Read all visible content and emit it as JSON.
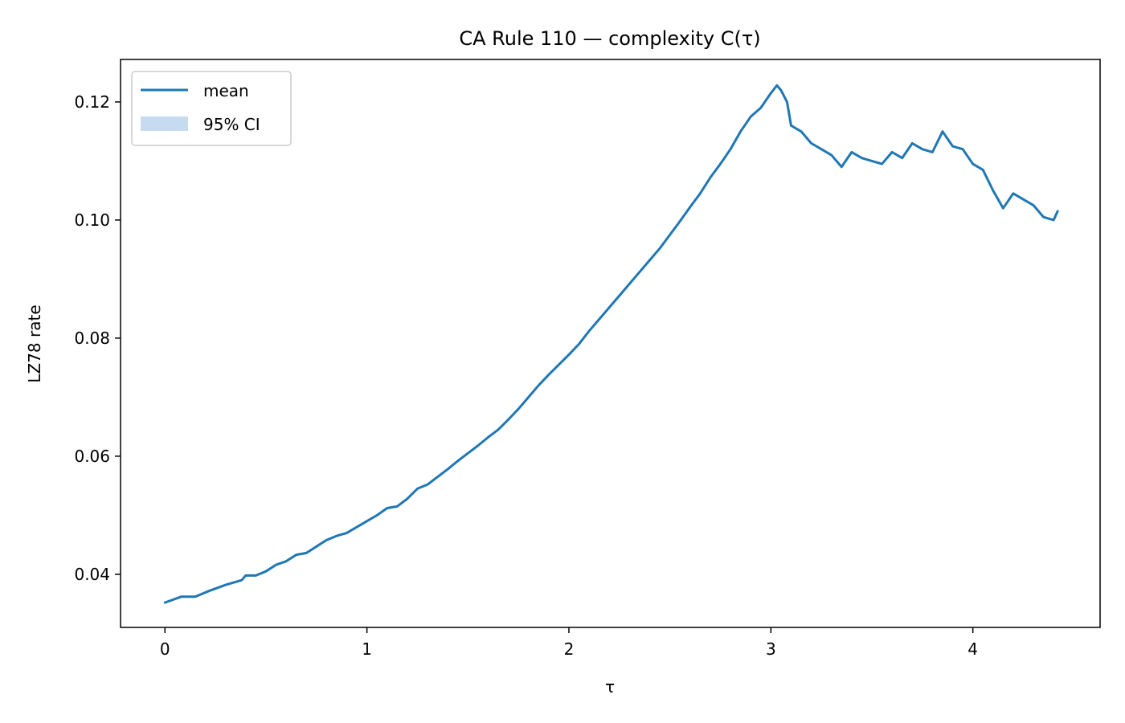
{
  "chart_data": {
    "type": "line",
    "title": "CA Rule 110 — complexity C(τ)",
    "xlabel": "τ",
    "ylabel": "LZ78 rate",
    "xlim": [
      -0.22,
      4.63
    ],
    "ylim": [
      0.031,
      0.1272
    ],
    "xticks": [
      0,
      1,
      2,
      3,
      4
    ],
    "xtick_labels": [
      "0",
      "1",
      "2",
      "3",
      "4"
    ],
    "yticks": [
      0.04,
      0.06,
      0.08,
      0.1,
      0.12
    ],
    "ytick_labels": [
      "0.04",
      "0.06",
      "0.08",
      "0.10",
      "0.12"
    ],
    "grid": false,
    "legend": {
      "position": "top-left",
      "entries": [
        "mean",
        "95% CI"
      ]
    },
    "colors": {
      "line": "#1f77b4",
      "band": "#c6dbef",
      "axes": "#000000"
    },
    "series": [
      {
        "name": "mean",
        "x": [
          0.0,
          0.08,
          0.15,
          0.22,
          0.3,
          0.38,
          0.4,
          0.45,
          0.5,
          0.55,
          0.6,
          0.65,
          0.7,
          0.75,
          0.8,
          0.85,
          0.9,
          0.95,
          1.0,
          1.05,
          1.1,
          1.15,
          1.2,
          1.25,
          1.3,
          1.35,
          1.4,
          1.45,
          1.5,
          1.55,
          1.6,
          1.65,
          1.7,
          1.75,
          1.8,
          1.85,
          1.9,
          1.95,
          2.0,
          2.05,
          2.1,
          2.15,
          2.2,
          2.25,
          2.3,
          2.35,
          2.4,
          2.45,
          2.5,
          2.55,
          2.6,
          2.65,
          2.7,
          2.75,
          2.8,
          2.85,
          2.9,
          2.95,
          3.0,
          3.03,
          3.05,
          3.08,
          3.1,
          3.15,
          3.2,
          3.25,
          3.3,
          3.35,
          3.4,
          3.45,
          3.5,
          3.55,
          3.6,
          3.65,
          3.7,
          3.75,
          3.8,
          3.85,
          3.9,
          3.95,
          4.0,
          4.05,
          4.1,
          4.15,
          4.2,
          4.25,
          4.3,
          4.35,
          4.4,
          4.42
        ],
        "y": [
          0.0352,
          0.0362,
          0.0362,
          0.0372,
          0.0382,
          0.039,
          0.0398,
          0.0398,
          0.0405,
          0.0416,
          0.0422,
          0.0433,
          0.0436,
          0.0447,
          0.0458,
          0.0465,
          0.047,
          0.048,
          0.049,
          0.05,
          0.0512,
          0.0515,
          0.0528,
          0.0545,
          0.0552,
          0.0565,
          0.0578,
          0.0592,
          0.0605,
          0.0618,
          0.0632,
          0.0645,
          0.0662,
          0.068,
          0.07,
          0.072,
          0.0738,
          0.0755,
          0.0772,
          0.079,
          0.0812,
          0.0832,
          0.0852,
          0.0872,
          0.0892,
          0.0912,
          0.0932,
          0.0952,
          0.0975,
          0.0998,
          0.1022,
          0.1045,
          0.1072,
          0.1095,
          0.112,
          0.115,
          0.1175,
          0.119,
          0.1215,
          0.1228,
          0.122,
          0.12,
          0.116,
          0.115,
          0.113,
          0.112,
          0.111,
          0.109,
          0.1115,
          0.1105,
          0.11,
          0.1095,
          0.1115,
          0.1105,
          0.113,
          0.112,
          0.1115,
          0.115,
          0.1125,
          0.112,
          0.1095,
          0.1085,
          0.105,
          0.102,
          0.1045,
          0.1035,
          0.1025,
          0.1005,
          0.1,
          0.1015
        ]
      }
    ]
  }
}
